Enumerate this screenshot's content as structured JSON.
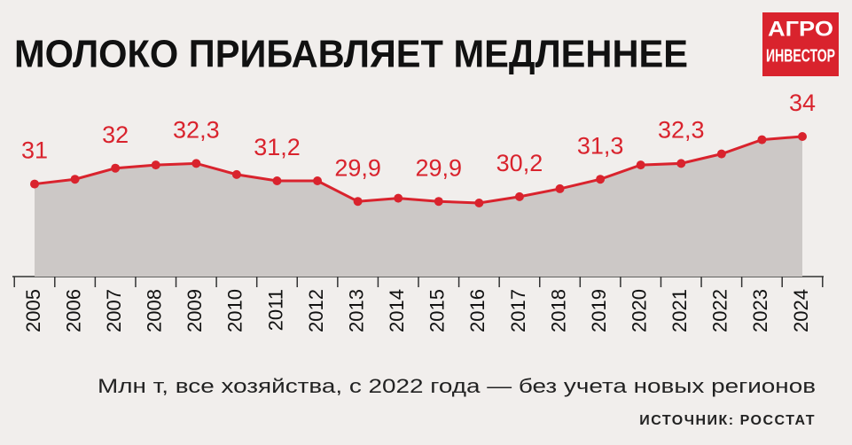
{
  "chart_data": {
    "type": "area",
    "title": "МОЛОКО ПРИБАВЛЯЕТ МЕДЛЕННЕЕ",
    "logo": [
      "АГРО",
      "ИНВЕСТОР"
    ],
    "subtitle": "Млн т, все хозяйства, с 2022 года — без учета новых регионов",
    "source": "ИСТОЧНИК: РОССТАТ",
    "categories": [
      "2005",
      "2006",
      "2007",
      "2008",
      "2009",
      "2010",
      "2011",
      "2012",
      "2013",
      "2014",
      "2015",
      "2016",
      "2017",
      "2018",
      "2019",
      "2020",
      "2021",
      "2022",
      "2023",
      "2024"
    ],
    "values": [
      31,
      31.3,
      32,
      32.2,
      32.3,
      31.6,
      31.2,
      31.2,
      29.9,
      30.1,
      29.9,
      29.8,
      30.2,
      30.7,
      31.3,
      32.2,
      32.3,
      32.9,
      33.8,
      34
    ],
    "value_labels": [
      "31",
      null,
      "32",
      null,
      "32,3",
      null,
      "31,2",
      null,
      "29,9",
      null,
      "29,9",
      null,
      "30,2",
      null,
      "31,3",
      null,
      "32,3",
      null,
      null,
      "34"
    ],
    "color": "#d9232d",
    "area_color": "#ccc8c6"
  }
}
